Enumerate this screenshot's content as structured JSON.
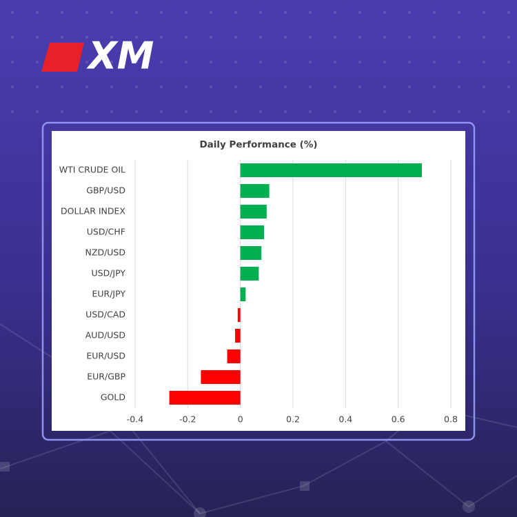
{
  "logo": "XM",
  "chart_data": {
    "type": "hbar",
    "title": "Daily Performance (%)",
    "categories": [
      "WTI CRUDE OIL",
      "GBP/USD",
      "DOLLAR INDEX",
      "USD/CHF",
      "NZD/USD",
      "USD/JPY",
      "EUR/JPY",
      "USD/CAD",
      "AUD/USD",
      "EUR/USD",
      "EUR/GBP",
      "GOLD"
    ],
    "values": [
      0.69,
      0.11,
      0.1,
      0.09,
      0.08,
      0.07,
      0.02,
      -0.01,
      -0.02,
      -0.05,
      -0.15,
      -0.27
    ],
    "positive_color": "#00b050",
    "negative_color": "#ff0000",
    "xlim": [
      -0.4,
      0.8
    ],
    "xticks": [
      -0.4,
      -0.2,
      0,
      0.2,
      0.4,
      0.6,
      0.8
    ],
    "grid": true
  }
}
